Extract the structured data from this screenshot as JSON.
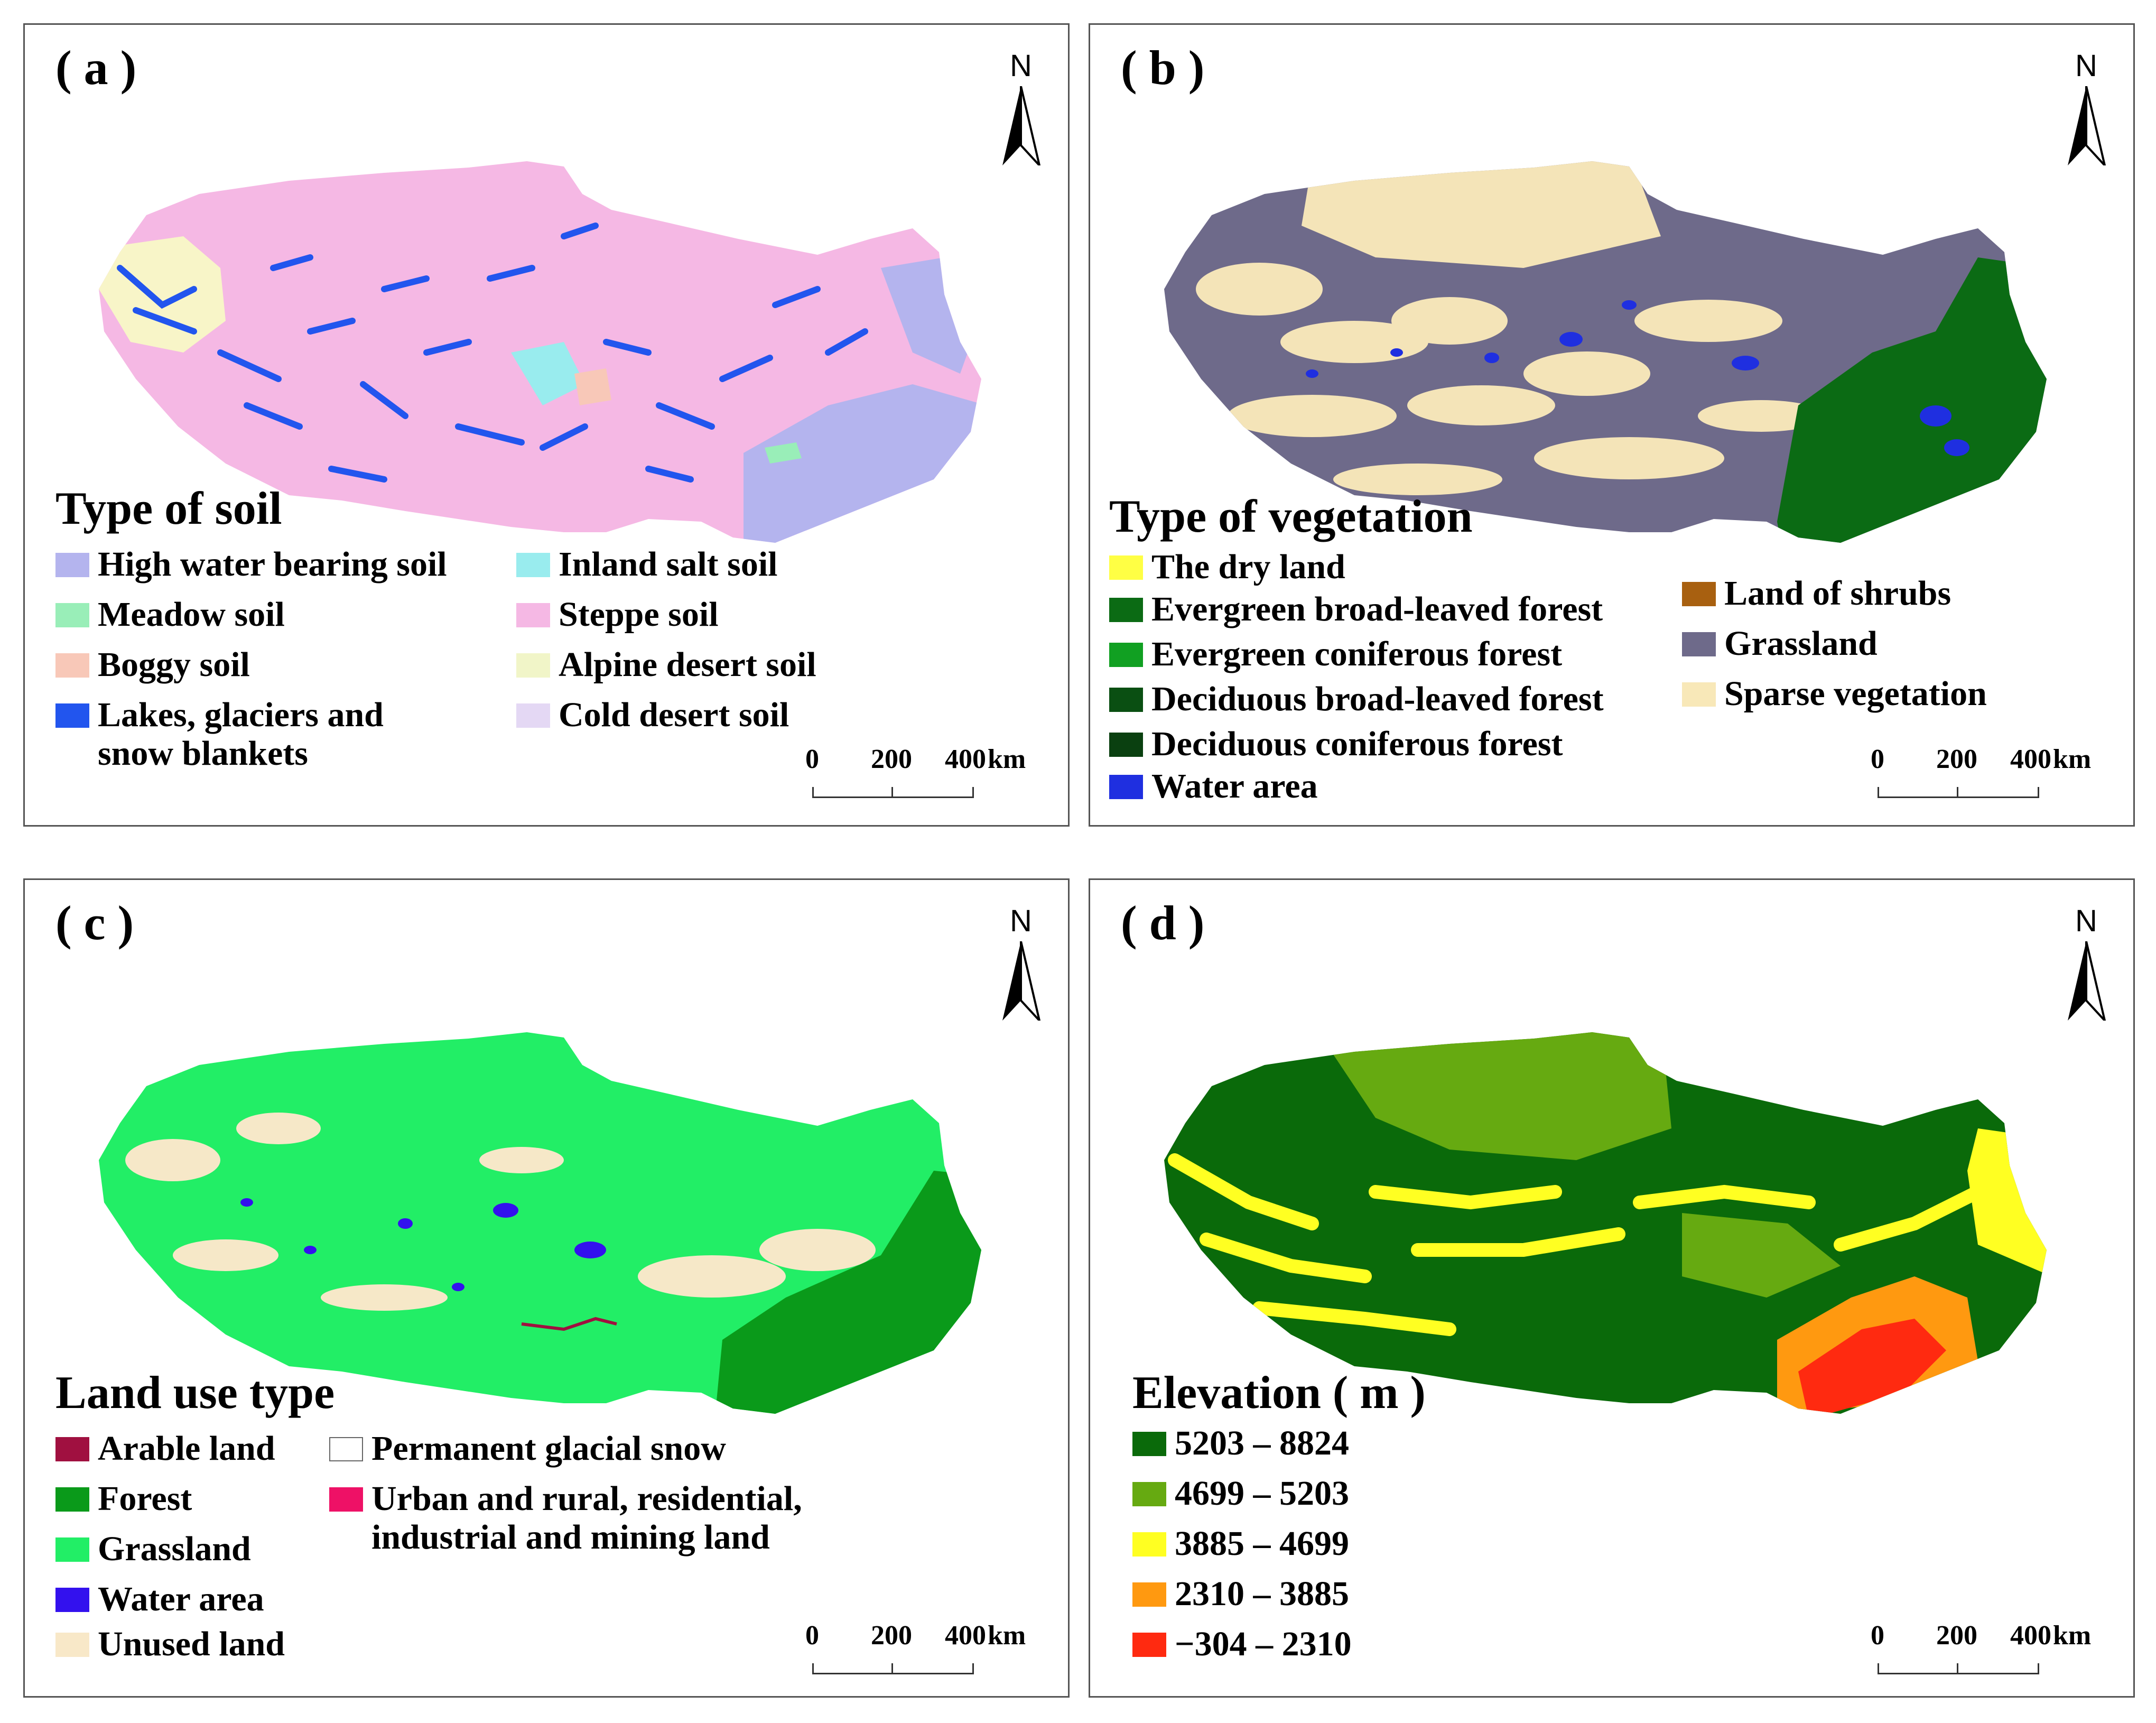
{
  "colors": {
    "panel_border": "#555555",
    "a": {
      "base": "#f5b8e4",
      "lake": "#2255ee",
      "water_bearing": "#b4b4ee",
      "desert": "#f8f5c8",
      "meadow": "#99eeb8",
      "salt": "#99ecee",
      "boggy": "#f8c8b8"
    },
    "b": {
      "grass": "#6e6a8a",
      "sparse": "#f4e4b8",
      "forest": "#0b6b14",
      "water": "#1f2fe0"
    },
    "c": {
      "grass": "#22ee66",
      "forest": "#0a9a1a",
      "unused": "#f6e8c8",
      "water": "#3311ee",
      "arable": "#a01040"
    },
    "d": {
      "dark": "#0a6a0a",
      "mid": "#66aa11",
      "yellow": "#ffff22",
      "orange": "#ff9910",
      "red": "#ff2a10"
    }
  },
  "panels": {
    "a": {
      "label": "( a )",
      "north_label": "N",
      "legend_title": "Type of soil",
      "legend": [
        {
          "label": "High water bearing soil",
          "color": "#b4b4ee"
        },
        {
          "label": "Meadow soil",
          "color": "#99eeb8"
        },
        {
          "label": "Boggy soil",
          "color": "#f8c8b8"
        },
        {
          "label": "Lakes, glaciers and snow blankets",
          "color": "#2255ee"
        },
        {
          "label": "Inland salt soil",
          "color": "#99ecee"
        },
        {
          "label": "Steppe soil",
          "color": "#f5b8e4"
        },
        {
          "label": "Alpine desert soil",
          "color": "#f1f5c8"
        },
        {
          "label": "Cold desert soil",
          "color": "#e4d8f4"
        }
      ],
      "scale": {
        "ticks": [
          "0",
          "200",
          "400"
        ],
        "unit": "km"
      }
    },
    "b": {
      "label": "( b )",
      "north_label": "N",
      "legend_title": "Type of vegetation",
      "legend": [
        {
          "label": "The dry land",
          "color": "#ffff44"
        },
        {
          "label": "Evergreen broad-leaved forest",
          "color": "#0b6b14"
        },
        {
          "label": "Evergreen coniferous forest",
          "color": "#11a022"
        },
        {
          "label": "Deciduous broad-leaved forest",
          "color": "#0a4f12"
        },
        {
          "label": "Deciduous coniferous forest",
          "color": "#0a4010"
        },
        {
          "label": "Water area",
          "color": "#1f2fe0"
        },
        {
          "label": "Land of shrubs",
          "color": "#a86010"
        },
        {
          "label": "Grassland",
          "color": "#6e6a8a"
        },
        {
          "label": "Sparse vegetation",
          "color": "#f8e8b8"
        }
      ],
      "scale": {
        "ticks": [
          "0",
          "200",
          "400"
        ],
        "unit": "km"
      }
    },
    "c": {
      "label": "( c )",
      "north_label": "N",
      "legend_title": "Land use type",
      "legend": [
        {
          "label": "Arable land",
          "color": "#a01040"
        },
        {
          "label": "Forest",
          "color": "#0a9a1a"
        },
        {
          "label": "Grassland",
          "color": "#22ee66"
        },
        {
          "label": "Water area",
          "color": "#3311ee"
        },
        {
          "label": "Unused land",
          "color": "#f8e8c8"
        },
        {
          "label": "Permanent glacial snow",
          "color": "#ffffff"
        },
        {
          "label": "Urban and rural, residential, industrial and mining land",
          "color": "#ee1166"
        }
      ],
      "scale": {
        "ticks": [
          "0",
          "200",
          "400"
        ],
        "unit": "km"
      }
    },
    "d": {
      "label": "( d )",
      "north_label": "N",
      "legend_title": "Elevation ( m )",
      "legend": [
        {
          "label": "5203 – 8824",
          "color": "#0a6a0a"
        },
        {
          "label": "4699 – 5203",
          "color": "#66aa11"
        },
        {
          "label": "3885 – 4699",
          "color": "#ffff22"
        },
        {
          "label": "2310 – 3885",
          "color": "#ff9910"
        },
        {
          "label": "−304 – 2310",
          "color": "#ff2a10"
        }
      ],
      "scale": {
        "ticks": [
          "0",
          "200",
          "400"
        ],
        "unit": "km"
      }
    }
  }
}
